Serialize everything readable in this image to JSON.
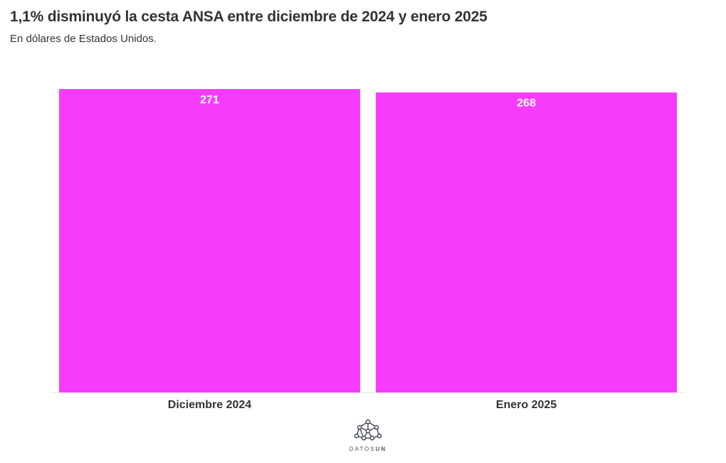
{
  "header": {
    "title": "1,1% disminuyó la cesta ANSA entre diciembre de 2024 y enero 2025",
    "subtitle": "En dólares de Estados Unidos."
  },
  "chart_data": {
    "type": "bar",
    "title": "1,1% disminuyó la cesta ANSA entre diciembre de 2024 y enero 2025",
    "subtitle": "En dólares de Estados Unidos.",
    "categories": [
      "Diciembre 2024",
      "Enero 2025"
    ],
    "values": [
      271,
      268
    ],
    "value_labels": [
      "271",
      "268"
    ],
    "xlabel": "",
    "ylabel": "",
    "ylim": [
      0,
      271
    ],
    "grid": false,
    "legend": "none",
    "bar_color": "#f73bfc"
  },
  "footer": {
    "logo_text_light": "DATOS",
    "logo_text_bold": "UN"
  },
  "colors": {
    "bar": "#f73bfc",
    "text": "#333333",
    "bar_label": "#ffffff"
  }
}
